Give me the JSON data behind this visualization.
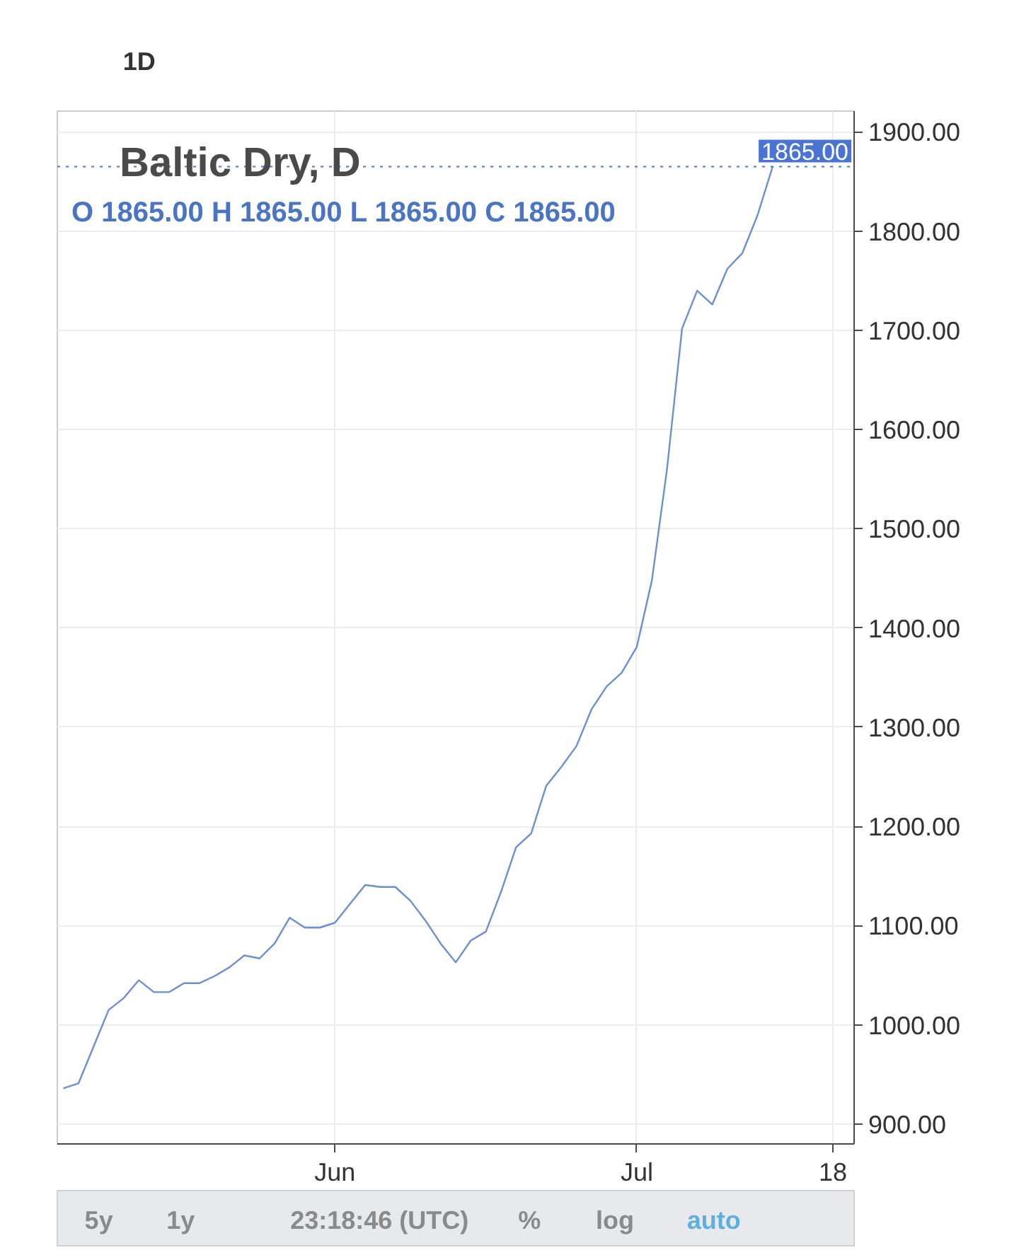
{
  "chart_data": {
    "type": "line",
    "title": "Baltic Dry, D",
    "subtitle": "O 1865.00 H 1865.00 L 1865.00 C 1865.00",
    "categories": [
      null,
      null,
      null,
      null,
      null,
      null,
      null,
      null,
      null,
      null,
      null,
      null,
      null,
      null,
      null,
      null,
      null,
      null,
      "Jun",
      null,
      null,
      null,
      null,
      null,
      null,
      null,
      null,
      null,
      null,
      null,
      null,
      null,
      null,
      null,
      null,
      null,
      null,
      null,
      "Jul",
      null,
      null,
      null,
      null,
      null,
      null,
      null,
      null,
      null,
      null,
      null,
      null,
      "18"
    ],
    "series": [
      {
        "color": "#6b8fd3",
        "values": [
          936,
          941,
          978,
          1015,
          1027,
          1045,
          1033,
          1033,
          1042,
          1042,
          1049,
          1058,
          1070,
          1067,
          1082,
          1108,
          1098,
          1098,
          1103,
          1122,
          1141,
          1139,
          1139,
          1125,
          1105,
          1082,
          1063,
          1085,
          1094,
          1134,
          1179,
          1193,
          1241,
          1260,
          1281,
          1318,
          1341,
          1355,
          1381,
          1448,
          1560,
          1702,
          1740,
          1726,
          1762,
          1778,
          1816,
          1865,
          null,
          null,
          null,
          null
        ]
      }
    ],
    "ylim": [
      880,
      1921
    ],
    "yticks": [
      {
        "value": 900,
        "label": "900.00"
      },
      {
        "value": 1000,
        "label": "1000.00"
      },
      {
        "value": 1100,
        "label": "1100.00"
      },
      {
        "value": 1200,
        "label": "1200.00"
      },
      {
        "value": 1300,
        "label": "1300.00"
      },
      {
        "value": 1400,
        "label": "1400.00"
      },
      {
        "value": 1500,
        "label": "1500.00"
      },
      {
        "value": 1600,
        "label": "1600.00"
      },
      {
        "value": 1700,
        "label": "1700.00"
      },
      {
        "value": 1800,
        "label": "1800.00"
      },
      {
        "value": 1900,
        "label": "1900.00"
      }
    ],
    "grid": true,
    "line_style": "solid",
    "ref_lines": [
      {
        "axis": "y",
        "value": 1865,
        "label": "1865.00",
        "color": "#4a74d4",
        "line_style": "dotted"
      }
    ],
    "annotations": [
      "1D",
      "5y",
      "1y",
      "23:18:46 (UTC)",
      "%",
      "log",
      "auto"
    ]
  }
}
